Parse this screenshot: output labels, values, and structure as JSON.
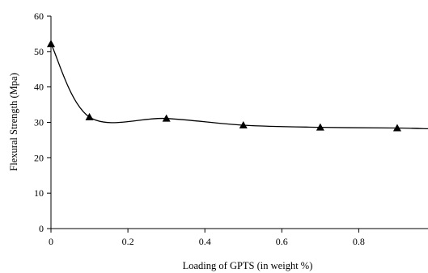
{
  "chart_data": {
    "type": "line",
    "title": "",
    "xlabel": "Loading  of GPTS (in weight %)",
    "ylabel": "Flexural Strength (Mpa)",
    "xlim": [
      0,
      0.98
    ],
    "ylim": [
      0,
      60
    ],
    "x_ticks": [
      0,
      0.2,
      0.4,
      0.6,
      0.8
    ],
    "x_tick_labels": [
      "0",
      "0.2",
      "0.4",
      "0.6",
      "0.8"
    ],
    "y_ticks": [
      0,
      10,
      20,
      30,
      40,
      50,
      60
    ],
    "y_tick_labels": [
      "0",
      "10",
      "20",
      "30",
      "40",
      "50",
      "60"
    ],
    "grid": false,
    "legend": "none",
    "line_style": "smooth",
    "marker": "triangle",
    "color": "#000000",
    "series": [
      {
        "x": [
          0,
          0.1,
          0.3,
          0.5,
          0.7,
          0.9
        ],
        "y": [
          52.2,
          31.5,
          31.1,
          29.2,
          28.6,
          28.4
        ],
        "tail_end": [
          0.98,
          28.2
        ]
      }
    ]
  }
}
